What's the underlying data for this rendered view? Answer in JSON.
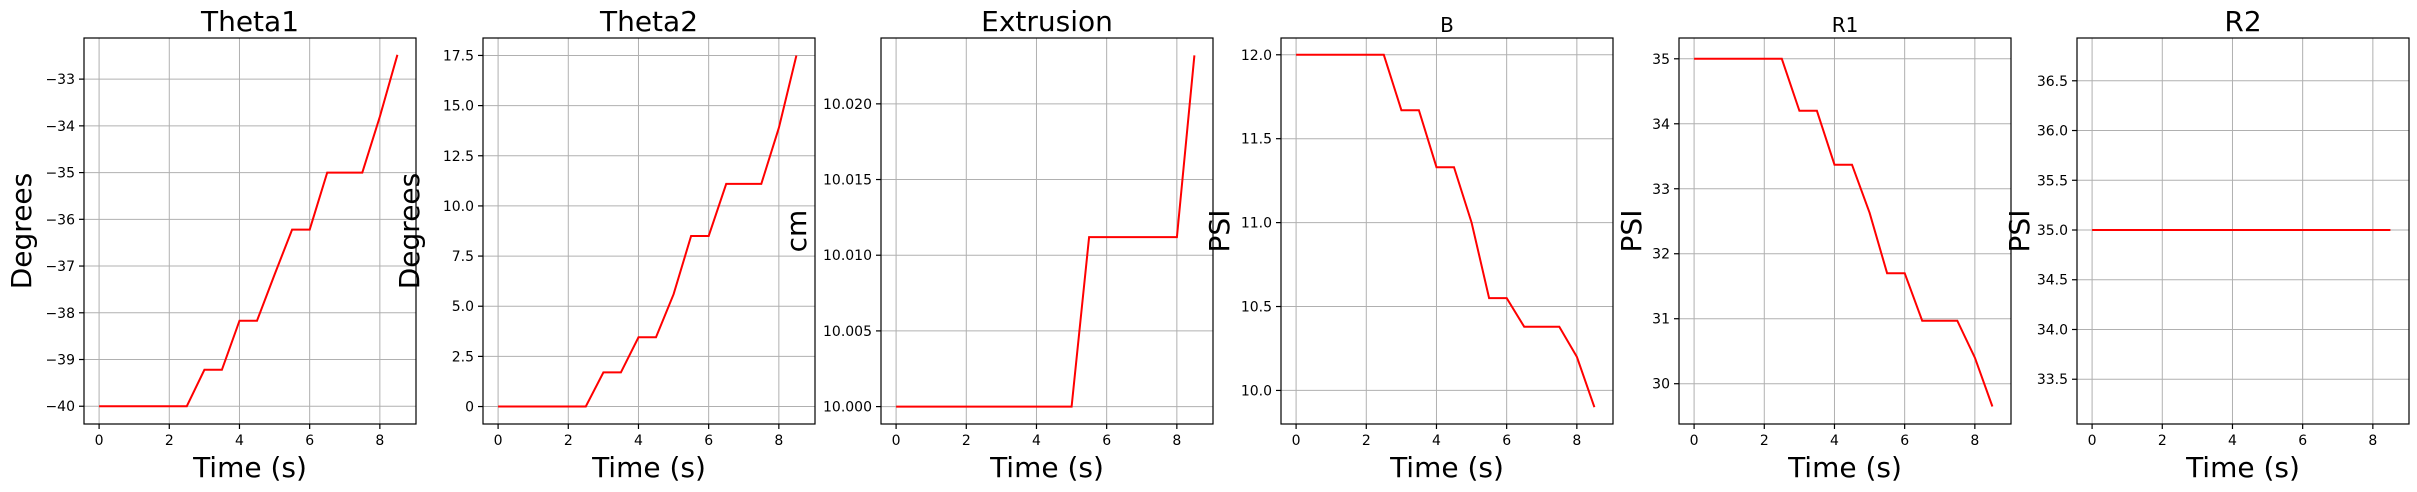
{
  "line_color": "#ff0000",
  "grid_color": "#b0b0b0",
  "chart_data": [
    {
      "type": "line",
      "title": "Theta1",
      "xlabel": "Time (s)",
      "ylabel": "Degrees",
      "xlim": [
        -0.43,
        9.03
      ],
      "ylim": [
        -40.38,
        -32.12
      ],
      "xticks": [
        0,
        2,
        4,
        6,
        8
      ],
      "yticks": [
        -40,
        -39,
        -38,
        -37,
        -36,
        -35,
        -34,
        -33
      ],
      "ytick_labels": [
        "−40",
        "−39",
        "−38",
        "−37",
        "−36",
        "−35",
        "−34",
        "−33"
      ],
      "grid": true,
      "title_size": "large",
      "x": [
        0,
        2.5,
        3,
        3.5,
        4,
        4.5,
        5,
        5.5,
        6,
        6.5,
        7,
        7.5,
        8,
        8.5
      ],
      "y": [
        -40,
        -40,
        -39.22,
        -39.22,
        -38.17,
        -38.17,
        -37.18,
        -36.22,
        -36.22,
        -35,
        -35,
        -35,
        -33.8,
        -32.48
      ]
    },
    {
      "type": "line",
      "title": "Theta2",
      "xlabel": "Time (s)",
      "ylabel": "Degrees",
      "xlim": [
        -0.43,
        9.03
      ],
      "ylim": [
        -0.87,
        18.37
      ],
      "xticks": [
        0,
        2,
        4,
        6,
        8
      ],
      "yticks": [
        0,
        2.5,
        5.0,
        7.5,
        10.0,
        12.5,
        15.0,
        17.5
      ],
      "ytick_labels": [
        "0",
        "2.5",
        "5.0",
        "7.5",
        "10.0",
        "12.5",
        "15.0",
        "17.5"
      ],
      "grid": true,
      "title_size": "large",
      "x": [
        0,
        2.5,
        3,
        3.5,
        4,
        4.5,
        5,
        5.5,
        6,
        6.5,
        7,
        7.5,
        8,
        8.5
      ],
      "y": [
        0,
        0,
        1.7,
        1.7,
        3.45,
        3.45,
        5.6,
        8.5,
        8.5,
        11.1,
        11.1,
        11.1,
        13.9,
        17.5
      ]
    },
    {
      "type": "line",
      "title": "Extrusion",
      "xlabel": "Time (s)",
      "ylabel": "cm",
      "xlim": [
        -0.43,
        9.03
      ],
      "ylim": [
        9.99885,
        10.02435
      ],
      "xticks": [
        0,
        2,
        4,
        6,
        8
      ],
      "yticks": [
        10.0,
        10.005,
        10.01,
        10.015,
        10.02
      ],
      "ytick_labels": [
        "10.000",
        "10.005",
        "10.010",
        "10.015",
        "10.020"
      ],
      "grid": true,
      "title_size": "large",
      "x": [
        0,
        5,
        5.5,
        8,
        8.5
      ],
      "y": [
        10.0,
        10.0,
        10.0112,
        10.0112,
        10.0232
      ]
    },
    {
      "type": "line",
      "title": "B",
      "xlabel": "Time (s)",
      "ylabel": "PSI",
      "xlim": [
        -0.43,
        9.03
      ],
      "ylim": [
        9.8,
        12.1
      ],
      "xticks": [
        0,
        2,
        4,
        6,
        8
      ],
      "yticks": [
        10.0,
        10.5,
        11.0,
        11.5,
        12.0
      ],
      "ytick_labels": [
        "10.0",
        "10.5",
        "11.0",
        "11.5",
        "12.0"
      ],
      "grid": true,
      "title_size": "small",
      "x": [
        0,
        2.5,
        3,
        3.5,
        4,
        4.5,
        5,
        5.5,
        6,
        6.5,
        7,
        7.5,
        8,
        8.5
      ],
      "y": [
        12.0,
        12.0,
        11.67,
        11.67,
        11.33,
        11.33,
        11.0,
        10.55,
        10.55,
        10.38,
        10.38,
        10.38,
        10.2,
        9.9
      ]
    },
    {
      "type": "line",
      "title": "R1",
      "xlabel": "Time (s)",
      "ylabel": "PSI",
      "xlim": [
        -0.43,
        9.03
      ],
      "ylim": [
        29.38,
        35.32
      ],
      "xticks": [
        0,
        2,
        4,
        6,
        8
      ],
      "yticks": [
        30,
        31,
        32,
        33,
        34,
        35
      ],
      "ytick_labels": [
        "30",
        "31",
        "32",
        "33",
        "34",
        "35"
      ],
      "grid": true,
      "title_size": "small",
      "x": [
        0,
        2.5,
        3,
        3.5,
        4,
        4.5,
        5,
        5.5,
        6,
        6.5,
        7,
        7.5,
        8,
        8.5
      ],
      "y": [
        35,
        35,
        34.2,
        34.2,
        33.37,
        33.37,
        32.63,
        31.7,
        31.7,
        30.97,
        30.97,
        30.97,
        30.4,
        29.65
      ]
    },
    {
      "type": "line",
      "title": "R2",
      "xlabel": "Time (s)",
      "ylabel": "PSI",
      "xlim": [
        -0.43,
        9.03
      ],
      "ylim": [
        33.05,
        36.93
      ],
      "xticks": [
        0,
        2,
        4,
        6,
        8
      ],
      "yticks": [
        33.5,
        34.0,
        34.5,
        35.0,
        35.5,
        36.0,
        36.5
      ],
      "ytick_labels": [
        "33.5",
        "34.0",
        "34.5",
        "35.0",
        "35.5",
        "36.0",
        "36.5"
      ],
      "grid": true,
      "title_size": "large",
      "x": [
        0,
        8.5
      ],
      "y": [
        35,
        35
      ]
    }
  ]
}
